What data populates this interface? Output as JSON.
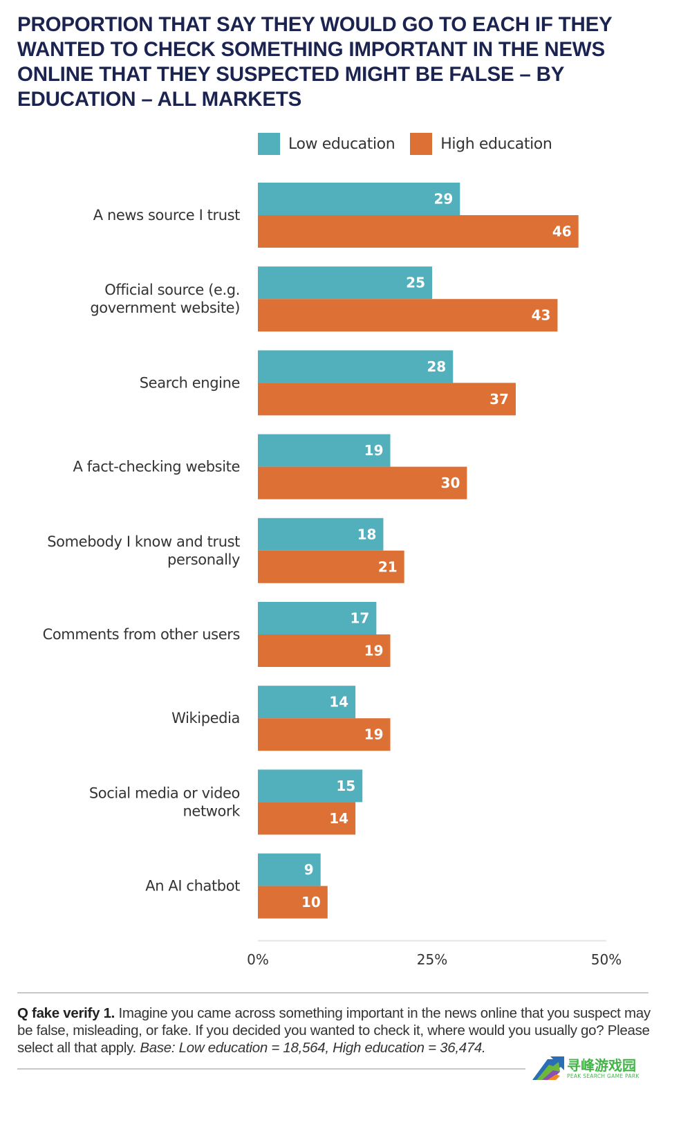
{
  "chart_data": {
    "type": "bar",
    "orientation": "horizontal",
    "title": "PROPORTION THAT SAY THEY WOULD GO TO EACH IF THEY WANTED TO CHECK SOMETHING IMPORTANT IN THE NEWS ONLINE THAT THEY SUSPECTED MIGHT BE FALSE – BY EDUCATION – ALL MARKETS",
    "categories": [
      [
        "A news source I trust"
      ],
      [
        "Official source (e.g.",
        "government website)"
      ],
      [
        "Search engine"
      ],
      [
        "A fact-checking website"
      ],
      [
        "Somebody I know and trust",
        "personally"
      ],
      [
        "Comments from other users"
      ],
      [
        "Wikipedia"
      ],
      [
        "Social media or video",
        "network"
      ],
      [
        "An AI chatbot"
      ]
    ],
    "series": [
      {
        "name": "Low education",
        "color": "#52b0bd",
        "values": [
          29,
          25,
          28,
          19,
          18,
          17,
          14,
          15,
          9
        ]
      },
      {
        "name": "High education",
        "color": "#dd7035",
        "values": [
          46,
          43,
          37,
          30,
          21,
          19,
          19,
          14,
          10
        ]
      }
    ],
    "xlim": [
      0,
      50
    ],
    "xticks": [
      0,
      25,
      50
    ],
    "xtick_labels": [
      "0%",
      "25%",
      "50%"
    ],
    "xlabel": "",
    "ylabel": "",
    "legend": "top",
    "grid": false
  },
  "footnote": {
    "bold": "Q fake verify 1.",
    "text": " Imagine you came across something important in the news online that you suspect may be false, misleading, or fake. If you decided you wanted to check it, where would you usually go? Please select all that apply. ",
    "italic": "Base: Low education = 18,564, High education = 36,474."
  },
  "watermark": {
    "cn": "寻峰游戏园",
    "en": "PEAK SEARCH GAME PARK"
  }
}
